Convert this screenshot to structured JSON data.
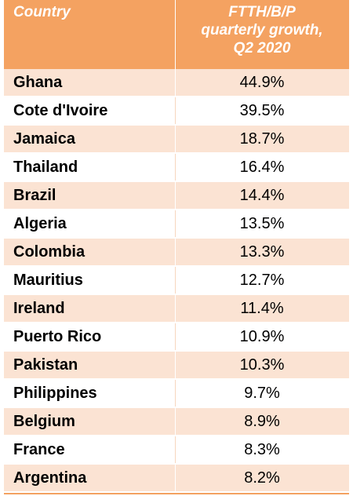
{
  "chart_data": {
    "type": "table",
    "columns": [
      "Country",
      "FTTH/B/P quarterly growth, Q2 2020"
    ],
    "header": {
      "country": "Country",
      "growth_lines": [
        "FTTH/B/P",
        "quarterly growth,",
        "Q2 2020"
      ]
    },
    "rows": [
      {
        "country": "Ghana",
        "value": "44.9%"
      },
      {
        "country": "Cote d'Ivoire",
        "value": "39.5%"
      },
      {
        "country": "Jamaica",
        "value": "18.7%"
      },
      {
        "country": "Thailand",
        "value": "16.4%"
      },
      {
        "country": "Brazil",
        "value": "14.4%"
      },
      {
        "country": "Algeria",
        "value": "13.5%"
      },
      {
        "country": "Colombia",
        "value": "13.3%"
      },
      {
        "country": "Mauritius",
        "value": "12.7%"
      },
      {
        "country": "Ireland",
        "value": "11.4%"
      },
      {
        "country": "Puerto Rico",
        "value": "10.9%"
      },
      {
        "country": "Pakistan",
        "value": "10.3%"
      },
      {
        "country": "Philippines",
        "value": "9.7%"
      },
      {
        "country": "Belgium",
        "value": "8.9%"
      },
      {
        "country": "France",
        "value": "8.3%"
      },
      {
        "country": "Argentina",
        "value": "8.2%"
      }
    ]
  },
  "colors": {
    "header_bg": "#f4a261",
    "row_alt_bg": "#fbe3d3",
    "header_text": "#ffffff"
  }
}
